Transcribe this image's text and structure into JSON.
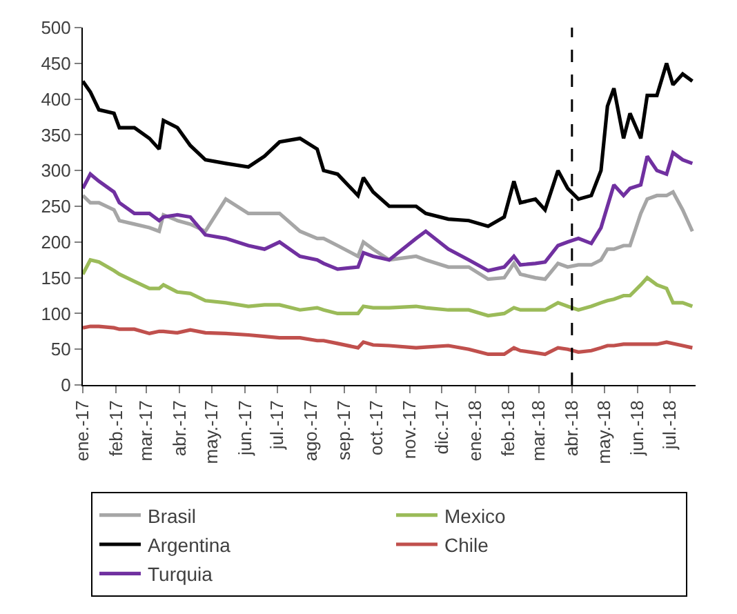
{
  "chart_data": {
    "type": "line",
    "x": [
      "2017-01-01",
      "2017-01-08",
      "2017-01-16",
      "2017-01-30",
      "2017-02-04",
      "2017-02-18",
      "2017-03-04",
      "2017-03-13",
      "2017-03-17",
      "2017-03-30",
      "2017-04-11",
      "2017-04-25",
      "2017-05-14",
      "2017-06-04",
      "2017-06-19",
      "2017-07-03",
      "2017-07-22",
      "2017-08-07",
      "2017-08-13",
      "2017-08-26",
      "2017-09-14",
      "2017-09-19",
      "2017-09-28",
      "2017-10-13",
      "2017-11-07",
      "2017-11-16",
      "2017-12-07",
      "2017-12-26",
      "2018-01-13",
      "2018-01-28",
      "2018-02-06",
      "2018-02-12",
      "2018-02-26",
      "2018-03-07",
      "2018-03-19",
      "2018-03-28",
      "2018-04-07",
      "2018-04-19",
      "2018-04-28",
      "2018-05-04",
      "2018-05-10",
      "2018-05-19",
      "2018-05-25",
      "2018-06-04",
      "2018-06-10",
      "2018-06-19",
      "2018-06-28",
      "2018-07-04",
      "2018-07-13",
      "2018-07-22"
    ],
    "series": [
      {
        "name": "Brasil",
        "color": "#a6a6a6",
        "values": [
          265,
          255,
          255,
          245,
          230,
          225,
          220,
          215,
          238,
          230,
          225,
          215,
          260,
          240,
          240,
          240,
          215,
          205,
          205,
          195,
          180,
          200,
          190,
          175,
          180,
          175,
          165,
          165,
          148,
          150,
          170,
          155,
          150,
          148,
          170,
          165,
          168,
          168,
          175,
          190,
          190,
          195,
          195,
          240,
          260,
          265,
          265,
          270,
          245,
          215
        ]
      },
      {
        "name": "Mexico",
        "color": "#9bbb59",
        "values": [
          155,
          175,
          172,
          160,
          155,
          145,
          135,
          135,
          140,
          130,
          128,
          118,
          115,
          110,
          112,
          112,
          105,
          108,
          105,
          100,
          100,
          110,
          108,
          108,
          110,
          108,
          105,
          105,
          97,
          100,
          108,
          105,
          105,
          105,
          115,
          110,
          105,
          110,
          115,
          118,
          120,
          125,
          125,
          140,
          150,
          140,
          135,
          115,
          115,
          110
        ]
      },
      {
        "name": "Argentina",
        "color": "#000000",
        "values": [
          425,
          410,
          385,
          380,
          360,
          360,
          345,
          330,
          370,
          360,
          335,
          315,
          310,
          305,
          320,
          340,
          345,
          330,
          300,
          295,
          265,
          290,
          270,
          250,
          250,
          240,
          232,
          230,
          222,
          235,
          285,
          255,
          260,
          245,
          300,
          275,
          260,
          265,
          300,
          390,
          415,
          345,
          380,
          345,
          405,
          405,
          450,
          420,
          435,
          425
        ]
      },
      {
        "name": "Chile",
        "color": "#c0504d",
        "values": [
          80,
          82,
          82,
          80,
          78,
          78,
          72,
          75,
          75,
          73,
          77,
          73,
          72,
          70,
          68,
          66,
          66,
          62,
          62,
          58,
          52,
          60,
          56,
          55,
          52,
          53,
          55,
          50,
          43,
          43,
          52,
          48,
          45,
          43,
          52,
          50,
          46,
          48,
          52,
          55,
          55,
          57,
          57,
          57,
          57,
          57,
          60,
          58,
          55,
          52
        ]
      },
      {
        "name": "Turquia",
        "color": "#7030a0",
        "values": [
          275,
          295,
          285,
          270,
          255,
          240,
          240,
          230,
          235,
          238,
          235,
          210,
          205,
          195,
          190,
          200,
          180,
          175,
          170,
          162,
          165,
          185,
          180,
          175,
          205,
          215,
          190,
          175,
          160,
          165,
          180,
          168,
          170,
          172,
          195,
          200,
          205,
          198,
          220,
          250,
          280,
          265,
          275,
          280,
          320,
          300,
          295,
          325,
          315,
          310
        ]
      }
    ],
    "xlim": [
      "2017-01-01",
      "2018-07-25"
    ],
    "xticks": [
      {
        "value": "2017-01-01",
        "label": "ene.-17"
      },
      {
        "value": "2017-02-01",
        "label": "feb.-17"
      },
      {
        "value": "2017-03-01",
        "label": "mar.-17"
      },
      {
        "value": "2017-04-01",
        "label": "abr.-17"
      },
      {
        "value": "2017-05-01",
        "label": "may.-17"
      },
      {
        "value": "2017-06-01",
        "label": "jun.-17"
      },
      {
        "value": "2017-07-01",
        "label": "jul.-17"
      },
      {
        "value": "2017-08-01",
        "label": "ago.-17"
      },
      {
        "value": "2017-09-01",
        "label": "sep.-17"
      },
      {
        "value": "2017-10-01",
        "label": "oct.-17"
      },
      {
        "value": "2017-11-01",
        "label": "nov.-17"
      },
      {
        "value": "2017-12-01",
        "label": "dic.-17"
      },
      {
        "value": "2018-01-01",
        "label": "ene.-18"
      },
      {
        "value": "2018-02-01",
        "label": "feb.-18"
      },
      {
        "value": "2018-03-01",
        "label": "mar.-18"
      },
      {
        "value": "2018-04-01",
        "label": "abr.-18"
      },
      {
        "value": "2018-05-01",
        "label": "may.-18"
      },
      {
        "value": "2018-06-01",
        "label": "jun.-18"
      },
      {
        "value": "2018-07-01",
        "label": "jul.-18"
      }
    ],
    "ylim": [
      0,
      500
    ],
    "yticks": [
      0,
      50,
      100,
      150,
      200,
      250,
      300,
      350,
      400,
      450,
      500
    ],
    "ref_lines": [
      {
        "axis": "x",
        "value": "2018-04-01",
        "color": "#000000",
        "line_style": "dashed"
      }
    ],
    "legend": "bottom",
    "marker": "none",
    "line_style": "solid"
  }
}
